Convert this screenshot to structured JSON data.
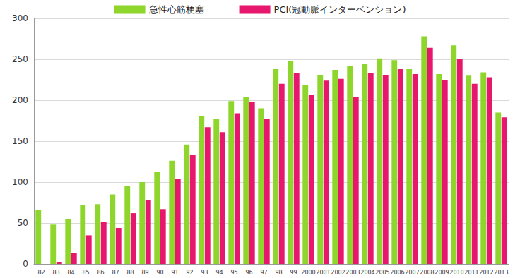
{
  "chart_data": {
    "type": "bar",
    "categories": [
      "82",
      "83",
      "84",
      "85",
      "86",
      "87",
      "88",
      "89",
      "90",
      "91",
      "92",
      "93",
      "94",
      "95",
      "96",
      "97",
      "98",
      "99",
      "2000",
      "2001",
      "2002",
      "2003",
      "2004",
      "2005",
      "2006",
      "2007",
      "2008",
      "2009",
      "2010",
      "2011",
      "2012",
      "2013"
    ],
    "series": [
      {
        "name": "急性心筋梗塞",
        "color": "#8ed62b",
        "values": [
          66,
          48,
          55,
          72,
          73,
          85,
          95,
          100,
          112,
          126,
          146,
          181,
          177,
          199,
          204,
          190,
          238,
          248,
          218,
          231,
          237,
          242,
          244,
          251,
          249,
          238,
          278,
          232,
          267,
          230,
          234,
          185
        ]
      },
      {
        "name": "PCI(冠動脈インターベンション)",
        "color": "#e8176e",
        "values": [
          0,
          2,
          13,
          35,
          51,
          44,
          62,
          78,
          67,
          104,
          133,
          167,
          161,
          184,
          198,
          177,
          220,
          233,
          207,
          224,
          226,
          204,
          233,
          231,
          238,
          232,
          264,
          225,
          250,
          220,
          228,
          179
        ]
      }
    ],
    "ylim": [
      0,
      300
    ],
    "yticks": [
      0,
      50,
      100,
      150,
      200,
      250,
      300
    ],
    "grid": true,
    "legend": "top"
  }
}
